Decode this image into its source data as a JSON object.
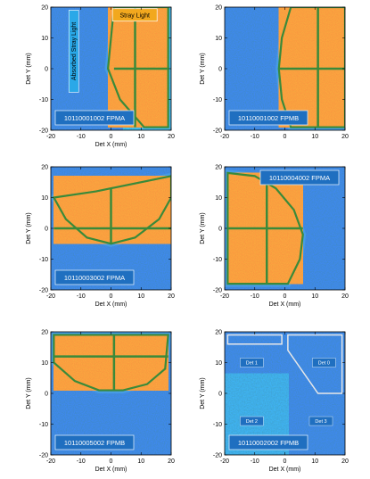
{
  "chart_data": [
    {
      "type": "heatmap",
      "observation": "10110001002 FPMA",
      "xlabel": "Det X (mm)",
      "ylabel": "Det Y (mm)",
      "xlim": [
        -20,
        20
      ],
      "ylim": [
        -20,
        20
      ],
      "xticks": [
        -20,
        -10,
        0,
        10,
        20
      ],
      "yticks": [
        -20,
        -10,
        0,
        10,
        20
      ],
      "annotations": [
        "Stray Light",
        "Absorbed Stray Light"
      ]
    },
    {
      "type": "heatmap",
      "observation": "10110001002 FPMB",
      "xlabel": "",
      "ylabel": "Det Y (mm)",
      "xlim": [
        -20,
        20
      ],
      "ylim": [
        -20,
        20
      ],
      "xticks": [
        -20,
        -10,
        0,
        10,
        20
      ],
      "yticks": [
        -20,
        -10,
        0,
        10,
        20
      ]
    },
    {
      "type": "heatmap",
      "observation": "10110003002 FPMA",
      "xlabel": "Det X (mm)",
      "ylabel": "Det Y (mm)",
      "xlim": [
        -20,
        20
      ],
      "ylim": [
        -20,
        20
      ],
      "xticks": [
        -20,
        -10,
        0,
        10,
        20
      ],
      "yticks": [
        -20,
        -10,
        0,
        10,
        20
      ]
    },
    {
      "type": "heatmap",
      "observation": "10110004002 FPMA",
      "xlabel": "Det X (mm)",
      "ylabel": "Det Y (mm)",
      "xlim": [
        -20,
        20
      ],
      "ylim": [
        -20,
        20
      ],
      "xticks": [
        -20,
        -10,
        0,
        10,
        20
      ],
      "yticks": [
        -20,
        -10,
        0,
        10,
        20
      ]
    },
    {
      "type": "heatmap",
      "observation": "10110005002 FPMB",
      "xlabel": "Det X (mm)",
      "ylabel": "Det Y (mm)",
      "xlim": [
        -20,
        20
      ],
      "ylim": [
        -20,
        20
      ],
      "xticks": [
        -20,
        -10,
        0,
        10,
        20
      ],
      "yticks": [
        -20,
        -10,
        0,
        10,
        20
      ]
    },
    {
      "type": "heatmap",
      "observation": "10110002002 FPMB",
      "xlabel": "Det X (mm)",
      "ylabel": "Det Y (mm)",
      "xlim": [
        -20,
        20
      ],
      "ylim": [
        -20,
        20
      ],
      "xticks": [
        -20,
        -10,
        0,
        10,
        20
      ],
      "yticks": [
        -20,
        -10,
        0,
        10,
        20
      ],
      "detectors": [
        "Det 0",
        "Det 1",
        "Det 2",
        "Det 3"
      ]
    }
  ],
  "colors": {
    "background_noise": "#1a3aa8",
    "stray_light": "#e8421a",
    "stray_edge": "#3a8a3a",
    "label_box": "#1f6fc0"
  }
}
